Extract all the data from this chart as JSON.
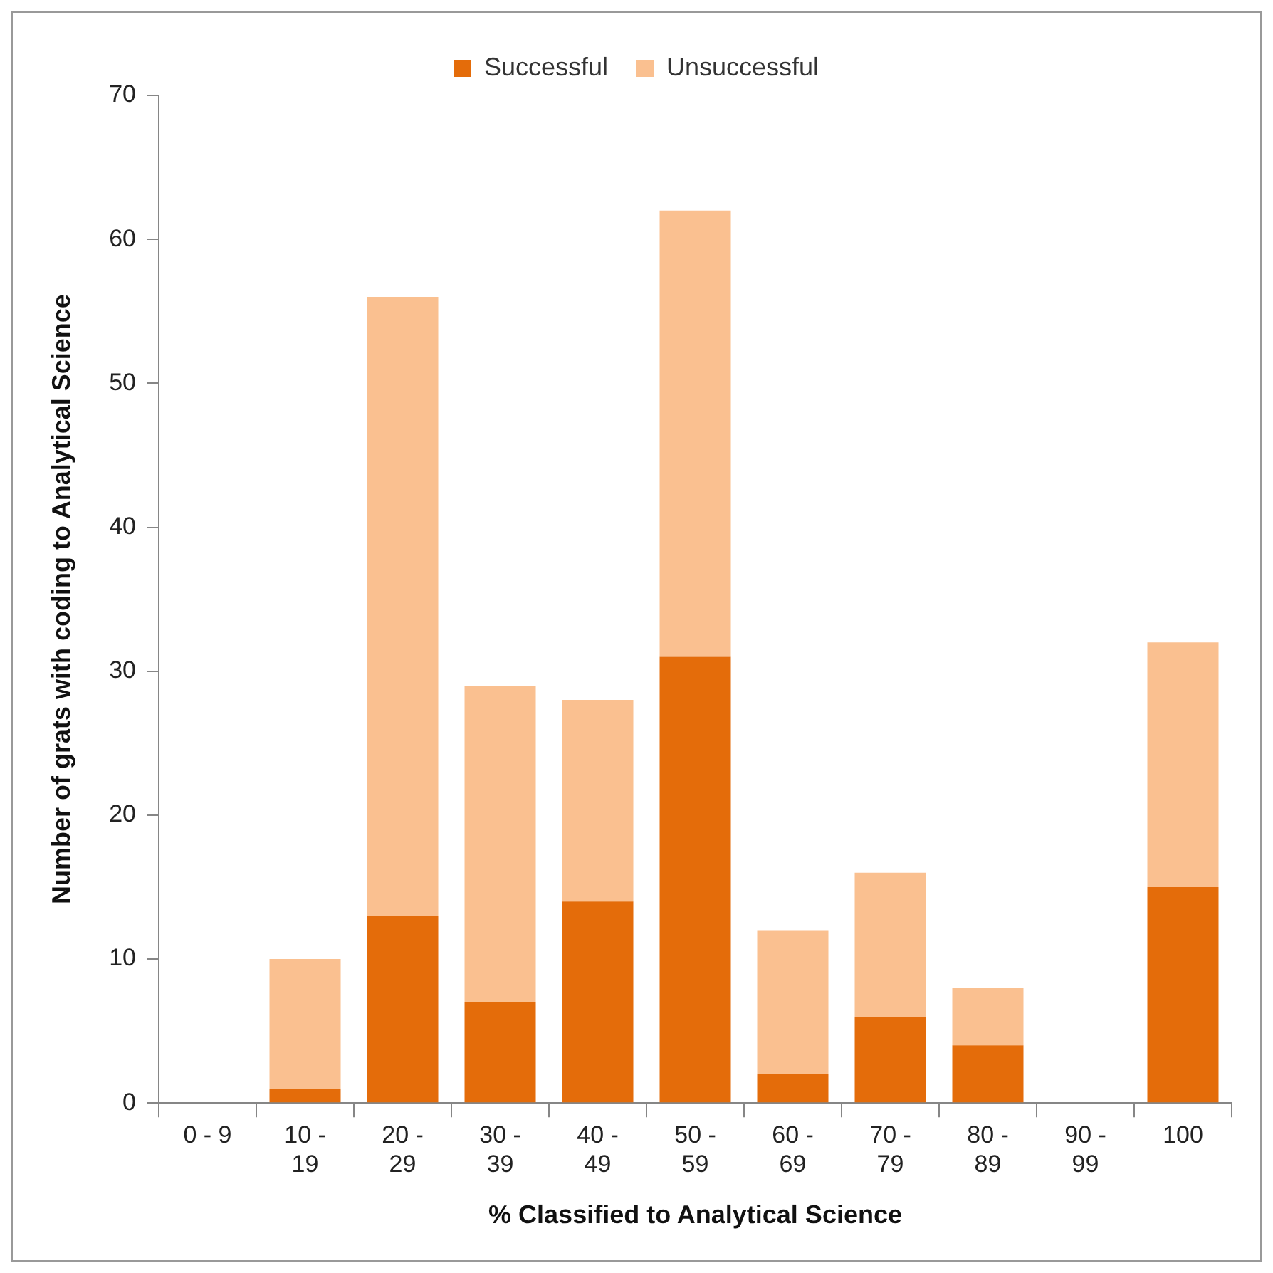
{
  "chart_data": {
    "type": "bar",
    "xlabel": "% Classified to Analytical Science",
    "ylabel": "Number of grats with coding to Analytical Science",
    "categories": [
      "0 - 9",
      "10 - 19",
      "20 - 29",
      "30 - 39",
      "40 - 49",
      "50 - 59",
      "60 - 69",
      "70 - 79",
      "80 - 89",
      "90 - 99",
      "100"
    ],
    "stacked": true,
    "series": [
      {
        "name": "Successful",
        "color": "#e46c0a",
        "values": [
          0,
          1,
          13,
          7,
          14,
          31,
          2,
          6,
          4,
          0,
          15
        ]
      },
      {
        "name": "Unsuccessful",
        "color": "#fac090",
        "values": [
          0,
          9,
          43,
          22,
          14,
          31,
          10,
          10,
          4,
          0,
          17
        ]
      }
    ],
    "ylim": [
      0,
      70
    ],
    "yticks": [
      0,
      10,
      20,
      30,
      40,
      50,
      60,
      70
    ],
    "grid": false,
    "legend": "top"
  }
}
